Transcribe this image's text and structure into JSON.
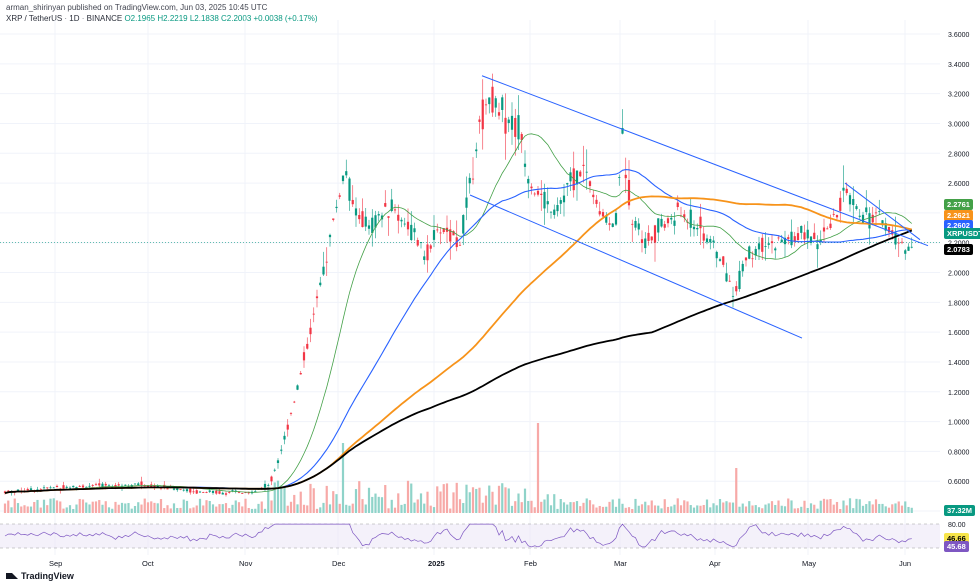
{
  "header": {
    "publisher": "arman_shirinyan published on TradingView.com, Jun 03, 2025 10:45 UTC",
    "symbol": "XRP / TetherUS",
    "interval": "1D",
    "exchange": "BINANCE",
    "ohlc": {
      "open": "O2.1965",
      "high": "H2.2219",
      "low": "L2.1838",
      "close": "C2.2003",
      "change": "+0.0038 (+0.17%)"
    }
  },
  "footer": {
    "logo": "TradingView"
  },
  "colors": {
    "up": "#089981",
    "down": "#f23645",
    "ma20": "#43a047",
    "ma50": "#2962ff",
    "ma100": "#f7931a",
    "ma200": "#000000",
    "channel": "#2962ff",
    "rsi": "#7e57c2"
  },
  "badges": {
    "ma20": "2.2761",
    "ma100": "2.2621",
    "ma50": "2.2602",
    "price": "XRPUSDT",
    "ma200": "2.0783",
    "volume": "37.32M",
    "rsi_a": "46.66",
    "rsi_b": "45.68"
  },
  "chart_data": {
    "type": "candlestick",
    "y_axis": [
      "3.6000",
      "3.4000",
      "3.2000",
      "3.0000",
      "2.8000",
      "2.6000",
      "2.4000",
      "2.2000",
      "2.0000",
      "1.8000",
      "1.6000",
      "1.4000",
      "1.2000",
      "1.0000",
      "0.8000",
      "0.6000",
      "0.4000"
    ],
    "x_axis": [
      "Sep",
      "Oct",
      "Nov",
      "Dec",
      "2025",
      "Feb",
      "Mar",
      "Apr",
      "May",
      "Jun"
    ],
    "rsi_levels": [
      "80.00",
      "20.00"
    ],
    "ylim": [
      0.4,
      3.6
    ],
    "last_price": 2.2003
  }
}
